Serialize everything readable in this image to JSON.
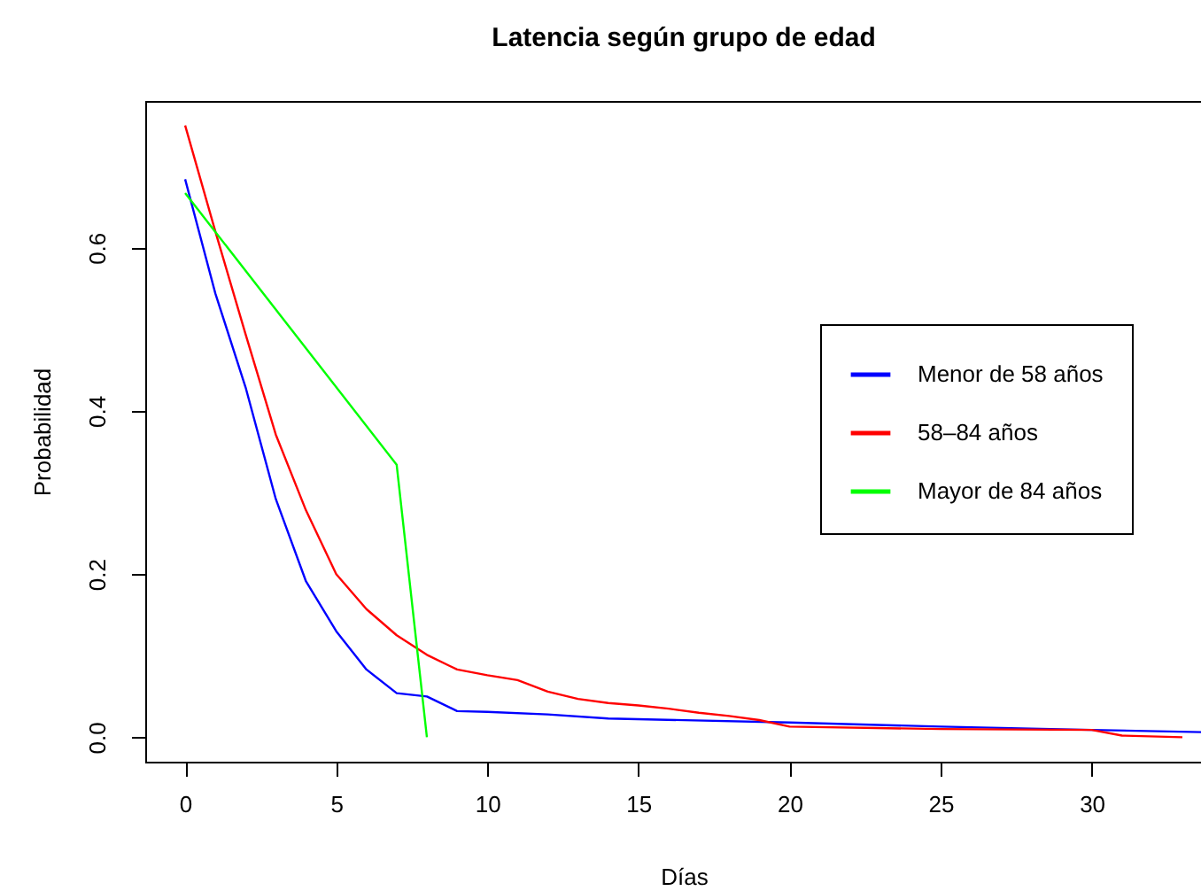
{
  "chart_data": {
    "type": "line",
    "title": "Latencia según grupo de edad",
    "xlabel": "Días",
    "ylabel": "Probabilidad",
    "xlim": [
      -1.32,
      34.32
    ],
    "ylim": [
      -0.03,
      0.78
    ],
    "xticks": [
      0,
      5,
      10,
      15,
      20,
      25,
      30
    ],
    "yticks": [
      {
        "value": 0,
        "label": "0.0"
      },
      0.2,
      0.4,
      0.6
    ],
    "legend": "right",
    "series": [
      {
        "name": "Menor de 58 años",
        "color": "#0000ff",
        "x": [
          0,
          1,
          2,
          3,
          4,
          5,
          6,
          7,
          8,
          9,
          10,
          12,
          14,
          20,
          25,
          30,
          34
        ],
        "values": [
          0.684,
          0.544,
          0.429,
          0.292,
          0.191,
          0.13,
          0.083,
          0.054,
          0.05,
          0.032,
          0.031,
          0.028,
          0.023,
          0.018,
          0.013,
          0.009,
          0.006
        ]
      },
      {
        "name": "58–84 años",
        "color": "#ff0000",
        "x": [
          0,
          1,
          2,
          3,
          4,
          5,
          6,
          7,
          8,
          9,
          10,
          11,
          12,
          13,
          14,
          15,
          16,
          17,
          18,
          19,
          20,
          25,
          30,
          31,
          33
        ],
        "values": [
          0.75,
          0.62,
          0.494,
          0.371,
          0.278,
          0.2,
          0.157,
          0.125,
          0.101,
          0.083,
          0.076,
          0.07,
          0.056,
          0.047,
          0.042,
          0.039,
          0.035,
          0.03,
          0.026,
          0.021,
          0.013,
          0.01,
          0.009,
          0.002,
          0.0
        ]
      },
      {
        "name": "Mayor de 84 años",
        "color": "#00ff00",
        "x": [
          0,
          7,
          8
        ],
        "values": [
          0.667,
          0.334,
          0.0
        ]
      }
    ]
  }
}
